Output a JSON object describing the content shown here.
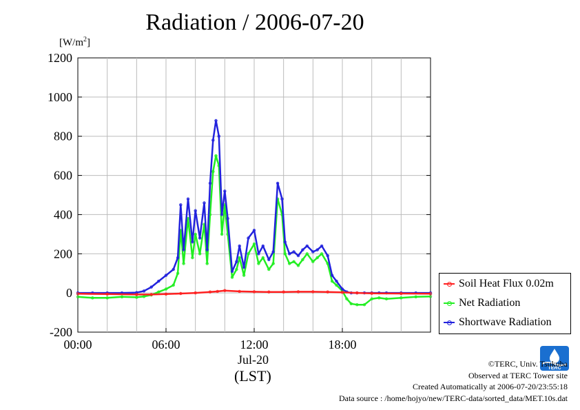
{
  "header": {
    "title": "Radiation / 2006-07-20",
    "y_unit": "[W/m",
    "y_unit_sup": "2",
    "y_unit_close": "]"
  },
  "x_axis": {
    "date_label": "Jul-20",
    "timezone_label": "(LST)"
  },
  "footer": {
    "copyright": "©TERC, Univ. Tsukuba",
    "site": "Observed at TERC Tower site",
    "created": "Created Automatically at 2006-07-20/23:55:18",
    "source": "Data source : /home/hojyo/new/TERC-data/sorted_data/MET.10s.dat"
  },
  "logo": {
    "text": "TERC"
  },
  "colors": {
    "soil": "#ff2020",
    "net": "#22ee22",
    "shortwave": "#2222dd",
    "shortwave_scatter": "#7777ee",
    "grid": "#bbbbbb"
  },
  "chart_data": {
    "type": "line",
    "title": "Radiation / 2006-07-20",
    "ylabel": "[W/m2]",
    "xlabel": "(LST)",
    "ylim": [
      -200,
      1200
    ],
    "xlim": [
      0,
      24
    ],
    "y_ticks": [
      -200,
      0,
      200,
      400,
      600,
      800,
      1000,
      1200
    ],
    "y_tick_labels": [
      "-200",
      "0",
      "200",
      "400",
      "600",
      "800",
      "1000",
      "1200"
    ],
    "x_ticks": [
      0,
      6,
      12,
      18
    ],
    "x_tick_labels": [
      "00:00",
      "06:00",
      "12:00",
      "18:00"
    ],
    "grid": true,
    "legend_position": "right, outside plot",
    "series": [
      {
        "name": "Soil Heat Flux 0.02m",
        "color": "#ff2020",
        "x": [
          0,
          2,
          4,
          5,
          6,
          7,
          8,
          9,
          9.5,
          10,
          11,
          12,
          13,
          14,
          15,
          16,
          17,
          18,
          19,
          20,
          22,
          24
        ],
        "y": [
          -4,
          -6,
          -8,
          -8,
          -6,
          -3,
          0,
          5,
          8,
          12,
          8,
          6,
          5,
          5,
          6,
          6,
          5,
          3,
          0,
          -2,
          -3,
          -4
        ]
      },
      {
        "name": "Net Radiation",
        "color": "#22ee22",
        "x": [
          0,
          1,
          2,
          3,
          4,
          4.5,
          5,
          5.5,
          6,
          6.5,
          6.8,
          7,
          7.2,
          7.5,
          7.8,
          8,
          8.3,
          8.6,
          8.8,
          9,
          9.2,
          9.4,
          9.6,
          9.8,
          10,
          10.2,
          10.5,
          10.8,
          11,
          11.3,
          11.6,
          12,
          12.3,
          12.6,
          13,
          13.3,
          13.6,
          13.9,
          14.1,
          14.4,
          14.7,
          15,
          15.3,
          15.6,
          16,
          16.3,
          16.6,
          17,
          17.3,
          17.6,
          18,
          18.3,
          18.6,
          19,
          19.5,
          20,
          20.5,
          21,
          22,
          23,
          24
        ],
        "y": [
          -20,
          -25,
          -25,
          -20,
          -22,
          -18,
          -10,
          5,
          20,
          40,
          100,
          320,
          150,
          380,
          180,
          300,
          200,
          350,
          150,
          400,
          620,
          700,
          650,
          300,
          450,
          300,
          80,
          120,
          180,
          90,
          200,
          250,
          150,
          180,
          120,
          150,
          480,
          400,
          200,
          150,
          160,
          140,
          170,
          200,
          160,
          180,
          200,
          150,
          60,
          40,
          10,
          -30,
          -55,
          -60,
          -60,
          -30,
          -25,
          -30,
          -25,
          -20,
          -18
        ]
      },
      {
        "name": "Shortwave Radiation",
        "color": "#2222dd",
        "x": [
          0,
          1,
          2,
          3,
          4,
          4.5,
          5,
          5.5,
          6,
          6.5,
          6.8,
          7,
          7.2,
          7.5,
          7.8,
          8,
          8.3,
          8.6,
          8.8,
          9,
          9.2,
          9.4,
          9.6,
          9.8,
          10,
          10.2,
          10.5,
          10.8,
          11,
          11.3,
          11.6,
          12,
          12.3,
          12.6,
          13,
          13.3,
          13.6,
          13.9,
          14.1,
          14.4,
          14.7,
          15,
          15.3,
          15.6,
          16,
          16.3,
          16.6,
          17,
          17.3,
          17.6,
          18,
          18.3,
          18.6,
          19,
          19.5,
          20,
          20.5,
          21,
          22,
          23,
          24
        ],
        "y": [
          0,
          0,
          0,
          0,
          2,
          10,
          30,
          60,
          90,
          120,
          180,
          450,
          220,
          480,
          260,
          420,
          280,
          460,
          220,
          560,
          780,
          880,
          800,
          400,
          520,
          380,
          110,
          160,
          240,
          130,
          280,
          320,
          200,
          240,
          170,
          210,
          560,
          480,
          260,
          200,
          210,
          190,
          220,
          240,
          210,
          220,
          240,
          190,
          90,
          60,
          20,
          5,
          0,
          0,
          0,
          0,
          0,
          0,
          0,
          0,
          0
        ]
      }
    ]
  }
}
